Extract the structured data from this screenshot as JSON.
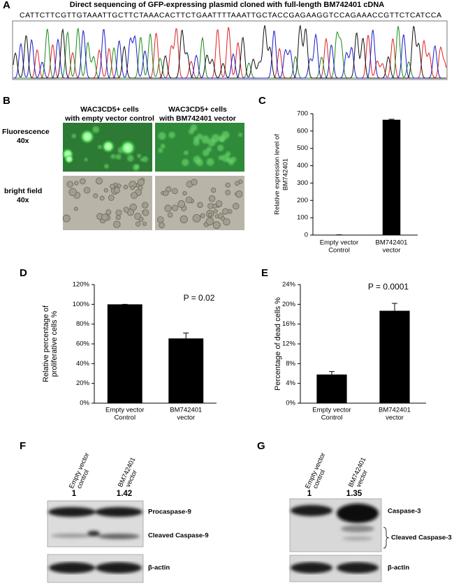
{
  "panel_a": {
    "label": "A",
    "title": "Direct sequencing of GFP-expressing plasmid cloned with full-length BM742401 cDNA",
    "sequence": "CATTCTTCGTTGTAAATTGCTTCTAAACACTTCTGAATTTTAAATTGCTACCGAGAAGGTCCAGAAACCGTTCTCATCCA"
  },
  "panel_b": {
    "label": "B",
    "columns": [
      [
        "WAC3CD5+ cells",
        "with empty vector control"
      ],
      [
        "WAC3CD5+ cells",
        "with BM742401 vector"
      ]
    ],
    "rows": [
      [
        "Fluorescence",
        "40x"
      ],
      [
        "bright field",
        "40x"
      ]
    ]
  },
  "panel_f": {
    "label": "F",
    "columns": [
      [
        "Empty vector",
        "control"
      ],
      [
        "BM742401",
        "vector"
      ]
    ],
    "quantification": [
      1,
      1.42
    ],
    "bands": [
      "Procaspase-9",
      "Cleaved Caspase-9",
      "β-actin"
    ]
  },
  "panel_g": {
    "label": "G",
    "columns": [
      [
        "Empty vector",
        "control"
      ],
      [
        "BM742401",
        "vector"
      ]
    ],
    "quantification": [
      1,
      1.35
    ],
    "bands": [
      "Caspase-3",
      "Cleaved Caspase-3",
      "β-actin"
    ]
  },
  "chart_data": [
    {
      "type": "bar",
      "panel_label": "C",
      "categories": [
        [
          "Empty vector",
          "Control"
        ],
        [
          "BM742401",
          "vector"
        ]
      ],
      "y_label": [
        "Relative expression level of",
        "BM742401"
      ],
      "series": [
        {
          "color": "#000000",
          "values": [
            1,
            665
          ],
          "errors": [
            0.5,
            3
          ]
        }
      ],
      "ylim": [
        0,
        700
      ],
      "yticks": [
        0,
        100,
        200,
        300,
        400,
        500,
        600,
        700
      ]
    },
    {
      "type": "bar",
      "panel_label": "D",
      "categories": [
        [
          "Empty vector",
          "Control"
        ],
        [
          "BM742401",
          "vector"
        ]
      ],
      "y_label": [
        "Relative percentage of",
        "proliferative cells %"
      ],
      "annotation": "P = 0.02",
      "series": [
        {
          "color": "#000000",
          "values": [
            100,
            65.5
          ],
          "errors": [
            0,
            5.5
          ]
        }
      ],
      "ylim": [
        0,
        120
      ],
      "yticks": [
        {
          "value": 0,
          "label": "0%"
        },
        {
          "value": 20,
          "label": "20%"
        },
        {
          "value": 40,
          "label": "40%"
        },
        {
          "value": 60,
          "label": "60%"
        },
        {
          "value": 80,
          "label": "80%"
        },
        {
          "value": 100,
          "label": "100%"
        },
        {
          "value": 120,
          "label": "120%"
        }
      ]
    },
    {
      "type": "bar",
      "panel_label": "E",
      "categories": [
        [
          "Empty vector",
          "Control"
        ],
        [
          "BM742401",
          "vector"
        ]
      ],
      "y_label": [
        "Percentage of dead cells %"
      ],
      "annotation": "P = 0.0001",
      "series": [
        {
          "color": "#000000",
          "values": [
            5.8,
            18.7
          ],
          "errors": [
            0.6,
            1.5
          ]
        }
      ],
      "ylim": [
        0,
        24
      ],
      "yticks": [
        {
          "value": 0,
          "label": "0%"
        },
        {
          "value": 4,
          "label": "4%"
        },
        {
          "value": 8,
          "label": "8%"
        },
        {
          "value": 12,
          "label": "12%"
        },
        {
          "value": 16,
          "label": "16%"
        },
        {
          "value": 20,
          "label": "20%"
        },
        {
          "value": 24,
          "label": "24%"
        }
      ]
    }
  ]
}
